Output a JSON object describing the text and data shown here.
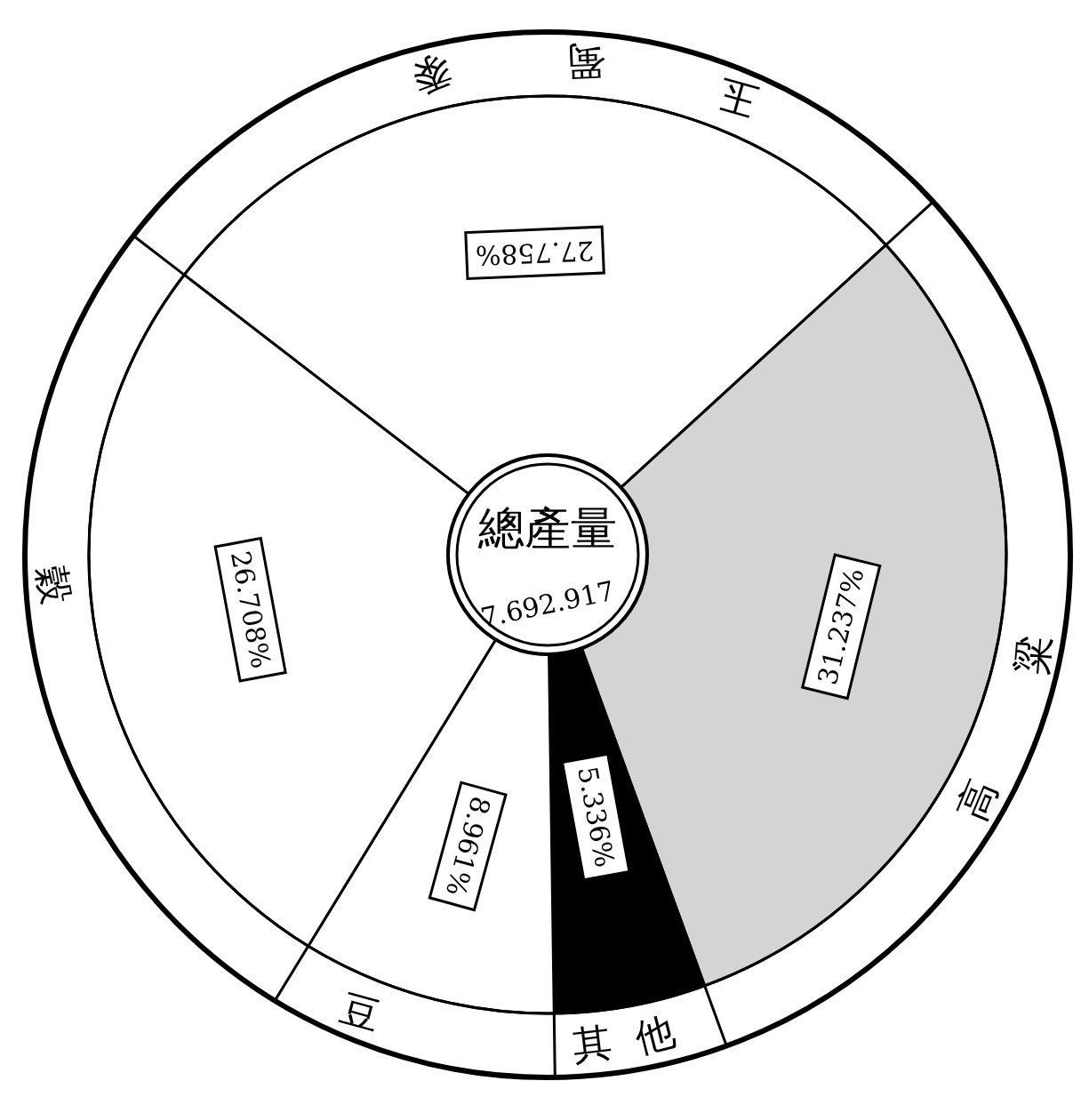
{
  "chart_data": {
    "type": "donut",
    "title": "總產量",
    "subtitle": "7.692.917",
    "categories": [
      "玉蜀黍",
      "高粱",
      "其他",
      "豆",
      "穀"
    ],
    "values": [
      27.758,
      31.237,
      5.336,
      8.961,
      26.708
    ],
    "colors": [
      "#ffffff",
      "#d4d4d4",
      "#000000",
      "#ffffff",
      "#ffffff"
    ],
    "value_labels": [
      "27.758%",
      "31.237%",
      "5.336%",
      "8.961%",
      "26.708%"
    ]
  }
}
